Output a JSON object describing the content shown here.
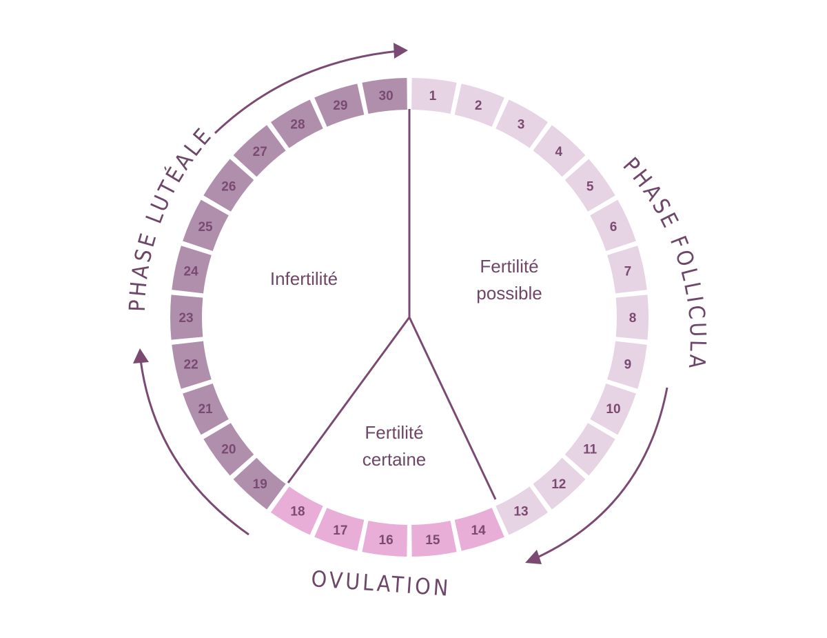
{
  "colors": {
    "follicular": "#e6d3e3",
    "ovulation": "#e8aed8",
    "luteal": "#b08fad",
    "ink": "#7a4a72",
    "number_text": "#7a4a72",
    "label_text": "#6e4768",
    "arrow": "#7a4a72"
  },
  "cycle": {
    "total_days": 30,
    "days": [
      {
        "n": "1",
        "phase": "follicular"
      },
      {
        "n": "2",
        "phase": "follicular"
      },
      {
        "n": "3",
        "phase": "follicular"
      },
      {
        "n": "4",
        "phase": "follicular"
      },
      {
        "n": "5",
        "phase": "follicular"
      },
      {
        "n": "6",
        "phase": "follicular"
      },
      {
        "n": "7",
        "phase": "follicular"
      },
      {
        "n": "8",
        "phase": "follicular"
      },
      {
        "n": "9",
        "phase": "follicular"
      },
      {
        "n": "10",
        "phase": "follicular"
      },
      {
        "n": "11",
        "phase": "follicular"
      },
      {
        "n": "12",
        "phase": "follicular"
      },
      {
        "n": "13",
        "phase": "follicular"
      },
      {
        "n": "14",
        "phase": "ovulation"
      },
      {
        "n": "15",
        "phase": "ovulation"
      },
      {
        "n": "16",
        "phase": "ovulation"
      },
      {
        "n": "17",
        "phase": "ovulation"
      },
      {
        "n": "18",
        "phase": "ovulation"
      },
      {
        "n": "19",
        "phase": "luteal"
      },
      {
        "n": "20",
        "phase": "luteal"
      },
      {
        "n": "21",
        "phase": "luteal"
      },
      {
        "n": "22",
        "phase": "luteal"
      },
      {
        "n": "23",
        "phase": "luteal"
      },
      {
        "n": "24",
        "phase": "luteal"
      },
      {
        "n": "25",
        "phase": "luteal"
      },
      {
        "n": "26",
        "phase": "luteal"
      },
      {
        "n": "27",
        "phase": "luteal"
      },
      {
        "n": "28",
        "phase": "luteal"
      },
      {
        "n": "29",
        "phase": "luteal"
      },
      {
        "n": "30",
        "phase": "luteal"
      }
    ]
  },
  "sectors": {
    "infertility": "Infertilité",
    "possible_line1": "Fertilité",
    "possible_line2": "possible",
    "certain_line1": "Fertilité",
    "certain_line2": "certaine"
  },
  "phases": {
    "luteal": "PHASE LUTÉALE",
    "follicular": "PHASE FOLLICULAIRE",
    "ovulation": "OVULATION"
  }
}
